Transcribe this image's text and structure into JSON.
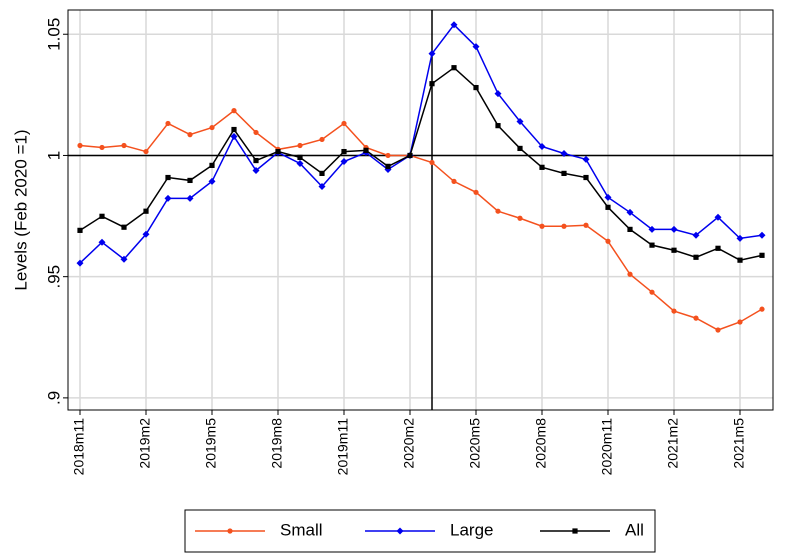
{
  "chart_data": {
    "type": "line",
    "y_label": "Levels (Feb 2020 =1)",
    "categories": [
      "2018m11",
      null,
      null,
      "2019m2",
      null,
      null,
      "2019m5",
      null,
      null,
      "2019m8",
      null,
      null,
      "2019m11",
      null,
      null,
      "2020m2",
      null,
      null,
      "2020m5",
      null,
      null,
      "2020m8",
      null,
      null,
      "2020m11",
      null,
      null,
      "2021m2",
      null,
      null,
      "2021m5",
      null
    ],
    "series": [
      {
        "name": "Small",
        "color": "#f4511e",
        "marker": "circle",
        "values": [
          1.0041,
          1.0033,
          1.0041,
          1.0016,
          1.0132,
          1.0086,
          1.0115,
          1.0185,
          1.0095,
          1.0025,
          1.0041,
          1.0066,
          1.0132,
          1.0033,
          1.0,
          1.0,
          0.9971,
          0.9893,
          0.9848,
          0.977,
          0.9741,
          0.9708,
          0.9708,
          0.9712,
          0.9646,
          0.951,
          0.9436,
          0.9358,
          0.9329,
          0.928,
          0.9313,
          0.9366
        ]
      },
      {
        "name": "Large",
        "color": "#0000ee",
        "marker": "diamond",
        "values": [
          0.9556,
          0.9642,
          0.9572,
          0.9675,
          0.9823,
          0.9823,
          0.9893,
          1.0078,
          0.9938,
          1.0012,
          0.9967,
          0.9872,
          0.9975,
          1.0012,
          0.9942,
          1.0,
          1.042,
          1.0539,
          1.0449,
          1.0255,
          1.014,
          1.0037,
          1.0008,
          0.9984,
          0.9827,
          0.9765,
          0.9695,
          0.9695,
          0.9671,
          0.9745,
          0.9658,
          0.9671
        ]
      },
      {
        "name": "All",
        "color": "#000000",
        "marker": "square",
        "values": [
          0.9691,
          0.9749,
          0.9704,
          0.977,
          0.9909,
          0.9897,
          0.9959,
          1.0107,
          0.9979,
          1.0016,
          0.9992,
          0.9926,
          1.0016,
          1.0021,
          0.9955,
          1.0,
          1.0296,
          1.0362,
          1.028,
          1.0123,
          1.0029,
          0.9951,
          0.9926,
          0.9909,
          0.9786,
          0.9695,
          0.963,
          0.9609,
          0.958,
          0.9617,
          0.9568,
          0.9588
        ]
      }
    ],
    "ylim": [
      0.895,
      1.06
    ],
    "yticks": [
      {
        "value": 0.9,
        "label": ".9"
      },
      {
        "value": 0.95,
        "label": ".95"
      },
      1,
      1.05
    ],
    "hline": 1,
    "vline_at": 16,
    "grid": true,
    "legend": "bottom"
  }
}
